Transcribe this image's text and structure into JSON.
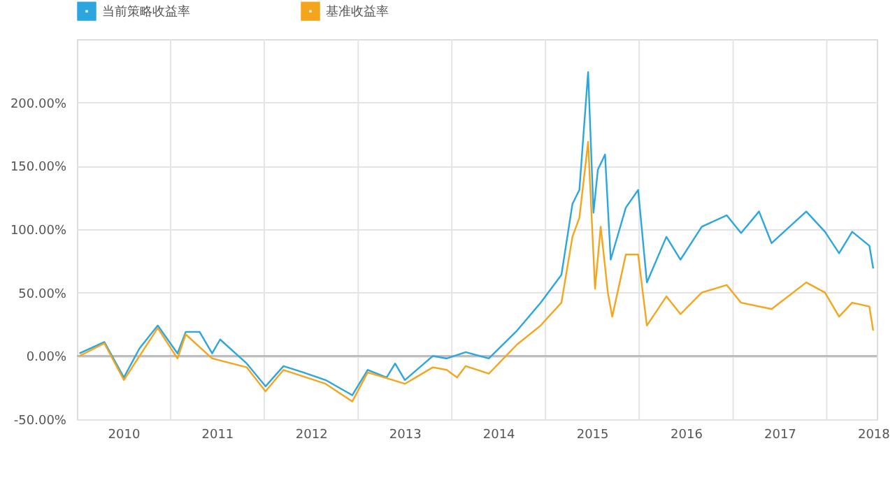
{
  "chart_data": {
    "type": "line",
    "legend": "top left",
    "grid": true,
    "xlim": [
      "2010-01-01",
      "2018-07-15"
    ],
    "ylim": [
      -50,
      250
    ],
    "xticks": [
      {
        "value": "2010-07-01",
        "label": "2010"
      },
      {
        "value": "2011-01-01",
        "label": null
      },
      {
        "value": "2011-07-01",
        "label": "2011"
      },
      {
        "value": "2012-01-01",
        "label": null
      },
      {
        "value": "2012-07-01",
        "label": "2012"
      },
      {
        "value": "2013-01-01",
        "label": null
      },
      {
        "value": "2013-07-01",
        "label": "2013"
      },
      {
        "value": "2014-01-01",
        "label": null
      },
      {
        "value": "2014-07-01",
        "label": "2014"
      },
      {
        "value": "2015-01-01",
        "label": null
      },
      {
        "value": "2015-07-01",
        "label": "2015"
      },
      {
        "value": "2016-01-01",
        "label": null
      },
      {
        "value": "2016-07-01",
        "label": "2016"
      },
      {
        "value": "2017-01-01",
        "label": null
      },
      {
        "value": "2017-07-01",
        "label": "2017"
      },
      {
        "value": "2018-01-01",
        "label": null
      },
      {
        "value": "2018-07-01",
        "label": "2018"
      }
    ],
    "yticks": [
      {
        "value": -50,
        "label": "-50.00%"
      },
      {
        "value": 0,
        "label": "0.00%"
      },
      {
        "value": 50,
        "label": "50.00%"
      },
      {
        "value": 100,
        "label": "100.00%"
      },
      {
        "value": 150,
        "label": "150.00%"
      },
      {
        "value": 200,
        "label": "200.00%"
      }
    ],
    "ref_lines": [
      {
        "axis": "y",
        "value": 0,
        "color": "#b0b0b0"
      }
    ],
    "series": [
      {
        "name": "当前策略收益率",
        "color": "#2ba6de",
        "x": [
          "2010-01-11",
          "2010-04-18",
          "2010-07-03",
          "2010-09-02",
          "2010-11-12",
          "2011-01-28",
          "2011-03-01",
          "2011-04-24",
          "2011-06-12",
          "2011-07-13",
          "2011-10-25",
          "2012-01-06",
          "2012-03-16",
          "2012-06-01",
          "2012-08-27",
          "2012-12-09",
          "2013-02-07",
          "2013-04-22",
          "2013-05-25",
          "2013-07-02",
          "2013-10-19",
          "2013-12-12",
          "2014-02-24",
          "2014-05-25",
          "2014-09-12",
          "2014-12-13",
          "2015-03-04",
          "2015-04-16",
          "2015-05-13",
          "2015-06-16",
          "2015-07-07",
          "2015-07-24",
          "2015-08-21",
          "2015-09-12",
          "2015-11-10",
          "2015-12-28",
          "2016-01-31",
          "2016-04-16",
          "2016-06-10",
          "2016-09-01",
          "2016-12-07",
          "2017-02-01",
          "2017-04-12",
          "2017-05-31",
          "2017-10-13",
          "2017-12-25",
          "2018-02-18",
          "2018-04-10",
          "2018-06-16",
          "2018-07-01"
        ],
        "values": [
          2,
          11,
          -17,
          6,
          24,
          2,
          19,
          19,
          2,
          13,
          -6,
          -24,
          -8,
          -13,
          -19,
          -31,
          -11,
          -17,
          -6,
          -19,
          0,
          -2,
          3,
          -2,
          20,
          42,
          64,
          120,
          131,
          224,
          113,
          147,
          159,
          76,
          117,
          131,
          58,
          94,
          76,
          102,
          111,
          97,
          114,
          89,
          114,
          98,
          81,
          98,
          87,
          69
        ]
      },
      {
        "name": "基准收益率",
        "color": "#f5a51c",
        "x": [
          "2010-01-11",
          "2010-04-18",
          "2010-07-03",
          "2010-11-12",
          "2011-01-28",
          "2011-03-01",
          "2011-06-12",
          "2011-10-25",
          "2012-01-06",
          "2012-03-16",
          "2012-08-27",
          "2012-12-09",
          "2013-02-07",
          "2013-07-02",
          "2013-10-19",
          "2013-12-12",
          "2014-01-21",
          "2014-02-24",
          "2014-05-25",
          "2014-09-12",
          "2014-12-13",
          "2015-03-04",
          "2015-04-16",
          "2015-05-13",
          "2015-06-16",
          "2015-07-13",
          "2015-08-04",
          "2015-09-01",
          "2015-09-18",
          "2015-11-10",
          "2015-12-28",
          "2016-01-31",
          "2016-04-16",
          "2016-06-10",
          "2016-09-01",
          "2016-12-07",
          "2017-02-01",
          "2017-05-31",
          "2017-10-13",
          "2017-12-25",
          "2018-02-18",
          "2018-04-10",
          "2018-06-16",
          "2018-07-01"
        ],
        "values": [
          0,
          10,
          -19,
          22,
          -2,
          17,
          -2,
          -9,
          -28,
          -11,
          -22,
          -36,
          -13,
          -22,
          -9,
          -11,
          -17,
          -8,
          -14,
          9,
          24,
          42,
          94,
          109,
          169,
          53,
          102,
          50,
          31,
          80,
          80,
          24,
          47,
          33,
          50,
          56,
          42,
          37,
          58,
          50,
          31,
          42,
          39,
          20
        ]
      }
    ]
  }
}
